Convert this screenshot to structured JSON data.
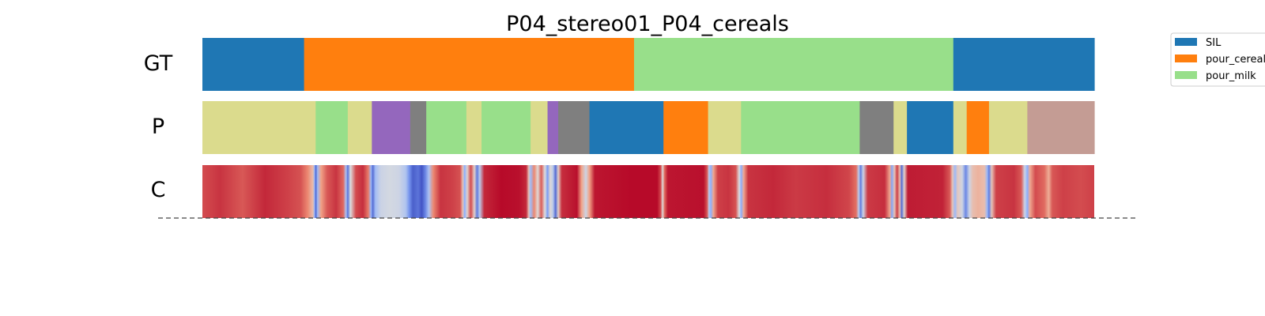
{
  "chart_data": {
    "type": "segmentation",
    "title": "P04_stereo01_P04_cereals",
    "rows": [
      {
        "label": "GT",
        "segments": [
          {
            "start": 0.0,
            "end": 0.114,
            "class": "SIL"
          },
          {
            "start": 0.114,
            "end": 0.484,
            "class": "pour_cereals"
          },
          {
            "start": 0.484,
            "end": 0.842,
            "class": "pour_milk"
          },
          {
            "start": 0.842,
            "end": 1.0,
            "class": "SIL"
          }
        ]
      },
      {
        "label": "P",
        "segments": [
          {
            "start": 0.0,
            "end": 0.127,
            "class": "k4"
          },
          {
            "start": 0.127,
            "end": 0.163,
            "class": "pour_milk"
          },
          {
            "start": 0.163,
            "end": 0.19,
            "class": "k4"
          },
          {
            "start": 0.19,
            "end": 0.233,
            "class": "k1"
          },
          {
            "start": 0.233,
            "end": 0.251,
            "class": "k3"
          },
          {
            "start": 0.251,
            "end": 0.296,
            "class": "pour_milk"
          },
          {
            "start": 0.296,
            "end": 0.313,
            "class": "k4"
          },
          {
            "start": 0.313,
            "end": 0.368,
            "class": "pour_milk"
          },
          {
            "start": 0.368,
            "end": 0.387,
            "class": "k4"
          },
          {
            "start": 0.387,
            "end": 0.399,
            "class": "k1"
          },
          {
            "start": 0.399,
            "end": 0.434,
            "class": "k3"
          },
          {
            "start": 0.434,
            "end": 0.517,
            "class": "SIL"
          },
          {
            "start": 0.517,
            "end": 0.567,
            "class": "pour_cereals"
          },
          {
            "start": 0.567,
            "end": 0.604,
            "class": "k4"
          },
          {
            "start": 0.604,
            "end": 0.737,
            "class": "pour_milk"
          },
          {
            "start": 0.737,
            "end": 0.775,
            "class": "k3"
          },
          {
            "start": 0.775,
            "end": 0.79,
            "class": "k4"
          },
          {
            "start": 0.79,
            "end": 0.842,
            "class": "SIL"
          },
          {
            "start": 0.842,
            "end": 0.857,
            "class": "k4"
          },
          {
            "start": 0.857,
            "end": 0.882,
            "class": "pour_cereals"
          },
          {
            "start": 0.882,
            "end": 0.925,
            "class": "k4"
          },
          {
            "start": 0.925,
            "end": 1.0,
            "class": "k2"
          }
        ]
      },
      {
        "label": "C",
        "confidence_stops": [
          [
            0.0,
            0.88
          ],
          [
            0.02,
            0.92
          ],
          [
            0.045,
            0.86
          ],
          [
            0.07,
            0.94
          ],
          [
            0.095,
            0.9
          ],
          [
            0.11,
            0.87
          ],
          [
            0.118,
            0.78
          ],
          [
            0.124,
            0.62
          ],
          [
            0.126,
            0.25
          ],
          [
            0.127,
            0.05
          ],
          [
            0.129,
            0.3
          ],
          [
            0.133,
            0.72
          ],
          [
            0.14,
            0.86
          ],
          [
            0.15,
            0.92
          ],
          [
            0.158,
            0.83
          ],
          [
            0.161,
            0.35
          ],
          [
            0.163,
            0.1
          ],
          [
            0.166,
            0.5
          ],
          [
            0.172,
            0.88
          ],
          [
            0.18,
            0.93
          ],
          [
            0.186,
            0.8
          ],
          [
            0.189,
            0.3
          ],
          [
            0.191,
            0.08
          ],
          [
            0.194,
            0.32
          ],
          [
            0.2,
            0.44
          ],
          [
            0.21,
            0.47
          ],
          [
            0.22,
            0.45
          ],
          [
            0.228,
            0.36
          ],
          [
            0.232,
            0.18
          ],
          [
            0.236,
            0.05
          ],
          [
            0.242,
            0.1
          ],
          [
            0.246,
            0.02
          ],
          [
            0.25,
            0.15
          ],
          [
            0.254,
            0.35
          ],
          [
            0.259,
            0.78
          ],
          [
            0.267,
            0.92
          ],
          [
            0.28,
            0.9
          ],
          [
            0.289,
            0.87
          ],
          [
            0.292,
            0.6
          ],
          [
            0.294,
            0.25
          ],
          [
            0.297,
            0.55
          ],
          [
            0.301,
            0.88
          ],
          [
            0.305,
            0.55
          ],
          [
            0.308,
            0.12
          ],
          [
            0.311,
            0.4
          ],
          [
            0.316,
            0.94
          ],
          [
            0.335,
            0.99
          ],
          [
            0.355,
            0.98
          ],
          [
            0.363,
            0.94
          ],
          [
            0.366,
            0.6
          ],
          [
            0.368,
            0.3
          ],
          [
            0.372,
            0.78
          ],
          [
            0.376,
            0.52
          ],
          [
            0.38,
            0.85
          ],
          [
            0.384,
            0.5
          ],
          [
            0.387,
            0.2
          ],
          [
            0.39,
            0.52
          ],
          [
            0.393,
            0.4
          ],
          [
            0.396,
            0.08
          ],
          [
            0.399,
            0.55
          ],
          [
            0.403,
            0.93
          ],
          [
            0.42,
            0.98
          ],
          [
            0.425,
            0.72
          ],
          [
            0.43,
            0.45
          ],
          [
            0.434,
            0.72
          ],
          [
            0.44,
            0.97
          ],
          [
            0.48,
            0.99
          ],
          [
            0.51,
            0.99
          ],
          [
            0.514,
            0.88
          ],
          [
            0.516,
            0.5
          ],
          [
            0.518,
            0.82
          ],
          [
            0.522,
            0.97
          ],
          [
            0.562,
            0.98
          ],
          [
            0.566,
            0.86
          ],
          [
            0.568,
            0.4
          ],
          [
            0.57,
            0.25
          ],
          [
            0.573,
            0.7
          ],
          [
            0.578,
            0.9
          ],
          [
            0.59,
            0.92
          ],
          [
            0.598,
            0.87
          ],
          [
            0.602,
            0.5
          ],
          [
            0.604,
            0.25
          ],
          [
            0.607,
            0.7
          ],
          [
            0.612,
            0.92
          ],
          [
            0.64,
            0.94
          ],
          [
            0.665,
            0.91
          ],
          [
            0.7,
            0.93
          ],
          [
            0.725,
            0.89
          ],
          [
            0.733,
            0.82
          ],
          [
            0.736,
            0.4
          ],
          [
            0.738,
            0.12
          ],
          [
            0.741,
            0.45
          ],
          [
            0.746,
            0.91
          ],
          [
            0.765,
            0.93
          ],
          [
            0.771,
            0.7
          ],
          [
            0.773,
            0.22
          ],
          [
            0.776,
            0.6
          ],
          [
            0.779,
            0.9
          ],
          [
            0.782,
            0.62
          ],
          [
            0.784,
            0.08
          ],
          [
            0.787,
            0.55
          ],
          [
            0.791,
            0.96
          ],
          [
            0.83,
            0.95
          ],
          [
            0.838,
            0.86
          ],
          [
            0.841,
            0.6
          ],
          [
            0.844,
            0.3
          ],
          [
            0.847,
            0.58
          ],
          [
            0.852,
            0.45
          ],
          [
            0.856,
            0.15
          ],
          [
            0.86,
            0.45
          ],
          [
            0.864,
            0.62
          ],
          [
            0.87,
            0.66
          ],
          [
            0.877,
            0.62
          ],
          [
            0.88,
            0.3
          ],
          [
            0.882,
            0.12
          ],
          [
            0.885,
            0.6
          ],
          [
            0.89,
            0.9
          ],
          [
            0.91,
            0.92
          ],
          [
            0.918,
            0.86
          ],
          [
            0.922,
            0.45
          ],
          [
            0.925,
            0.25
          ],
          [
            0.928,
            0.7
          ],
          [
            0.934,
            0.88
          ],
          [
            0.944,
            0.83
          ],
          [
            0.949,
            0.68
          ],
          [
            0.953,
            0.86
          ],
          [
            0.965,
            0.9
          ],
          [
            0.985,
            0.88
          ],
          [
            1.0,
            0.9
          ]
        ]
      }
    ],
    "legend": {
      "placement": "top-right",
      "entries": [
        {
          "name": "SIL",
          "label": "SIL"
        },
        {
          "name": "pour_cereals",
          "label": "pour_cereals"
        },
        {
          "name": "pour_milk",
          "label": "pour_milk"
        }
      ]
    },
    "class_colors": {
      "SIL": "#1f77b4",
      "pour_cereals": "#ff7f0e",
      "pour_milk": "#98df8a",
      "k1": "#9467bd",
      "k2": "#c49c94",
      "k3": "#7f7f7f",
      "k4": "#dbdb8d"
    },
    "colormap": "coolwarm",
    "baseline_style": "dashed"
  }
}
